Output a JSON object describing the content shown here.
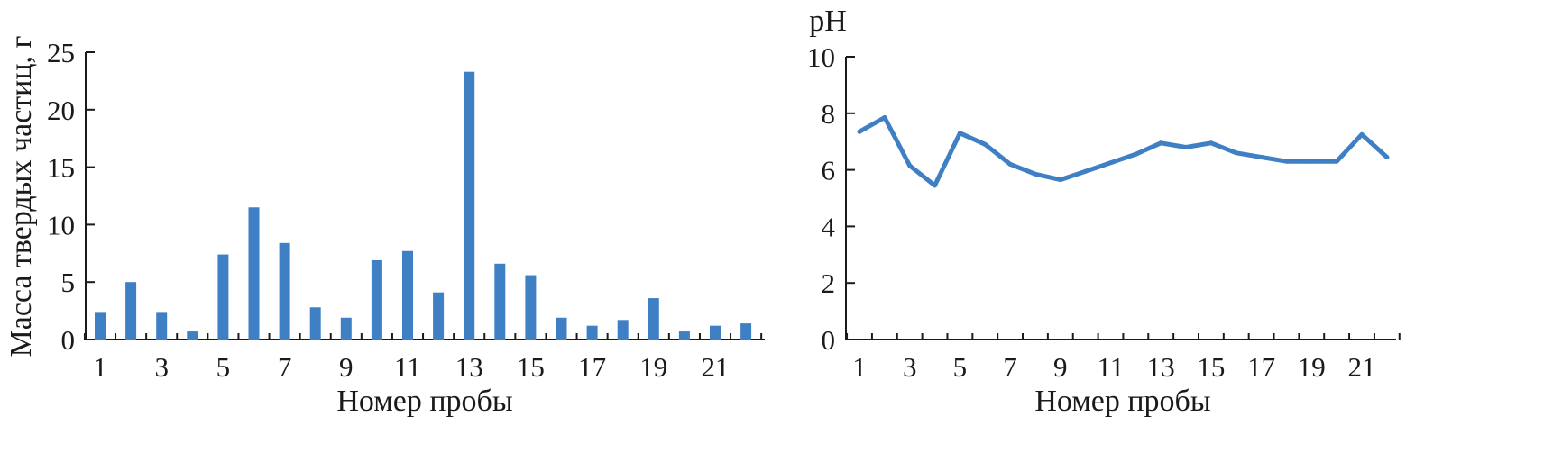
{
  "chart_data": [
    {
      "type": "bar",
      "categories": [
        1,
        2,
        3,
        4,
        5,
        6,
        7,
        8,
        9,
        10,
        11,
        12,
        13,
        14,
        15,
        16,
        17,
        18,
        19,
        20,
        21,
        22
      ],
      "values": [
        2.4,
        5.0,
        2.4,
        0.7,
        7.4,
        11.5,
        8.4,
        2.8,
        1.9,
        6.9,
        7.7,
        4.1,
        23.3,
        6.6,
        5.6,
        1.9,
        1.2,
        1.7,
        3.6,
        0.7,
        1.2,
        1.4
      ],
      "xlabel": "Номер пробы",
      "ylabel": "Масса твердых частиц, г",
      "ylim": [
        0,
        25
      ],
      "yticks": [
        "0",
        "5",
        "10",
        "15",
        "20",
        "25"
      ],
      "xticks": [
        "1",
        "3",
        "5",
        "7",
        "9",
        "11",
        "13",
        "15",
        "17",
        "19",
        "21"
      ],
      "color": "#3f7fc4",
      "grid": false
    },
    {
      "type": "line",
      "x": [
        1,
        2,
        3,
        4,
        5,
        6,
        7,
        8,
        9,
        10,
        11,
        12,
        13,
        14,
        15,
        16,
        17,
        18,
        19,
        20,
        21,
        22
      ],
      "values": [
        7.35,
        7.85,
        6.15,
        5.45,
        7.3,
        6.9,
        6.2,
        5.85,
        5.65,
        5.95,
        6.25,
        6.55,
        6.95,
        6.8,
        6.95,
        6.6,
        6.45,
        6.3,
        6.3,
        6.3,
        7.25,
        6.45
      ],
      "xlabel": "Номер пробы",
      "ylabel": "pH",
      "ylim": [
        0,
        10
      ],
      "yticks": [
        "0",
        "2",
        "4",
        "6",
        "8",
        "10"
      ],
      "xticks": [
        "1",
        "3",
        "5",
        "7",
        "9",
        "11",
        "13",
        "15",
        "17",
        "19",
        "21"
      ],
      "color": "#3f7fc4",
      "grid": false
    }
  ]
}
